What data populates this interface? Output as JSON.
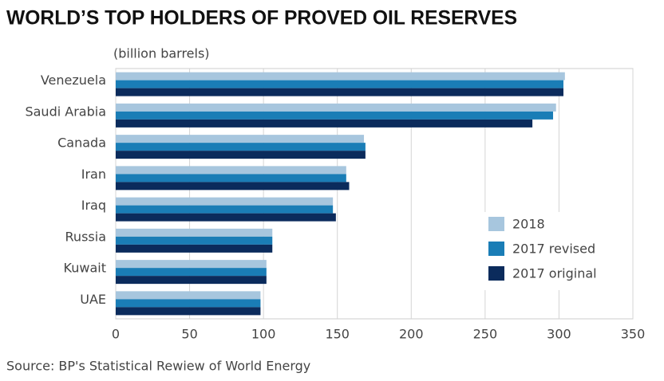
{
  "chart_data": {
    "type": "hbar",
    "title": "WORLD’S TOP HOLDERS OF PROVED OIL RESERVES",
    "x_label": "(billion barrels)",
    "source": "Source: BP's Statistical Rewiew of World Energy",
    "categories": [
      "Venezuela",
      "Saudi Arabia",
      "Canada",
      "Iran",
      "Iraq",
      "Russia",
      "Kuwait",
      "UAE"
    ],
    "series": [
      {
        "name": "2018",
        "color": "#a7c6de",
        "values": [
          304,
          298,
          168,
          156,
          147,
          106,
          102,
          98
        ]
      },
      {
        "name": "2017 revised",
        "color": "#1a7db6",
        "values": [
          303,
          296,
          169,
          156,
          147,
          106,
          102,
          98
        ]
      },
      {
        "name": "2017 original",
        "color": "#0b2b5c",
        "values": [
          303,
          282,
          169,
          158,
          149,
          106,
          102,
          98
        ]
      }
    ],
    "xlim": [
      0,
      350
    ],
    "xticks": [
      0,
      50,
      100,
      150,
      200,
      250,
      300,
      350
    ],
    "grid": true,
    "legend": "lower right"
  }
}
